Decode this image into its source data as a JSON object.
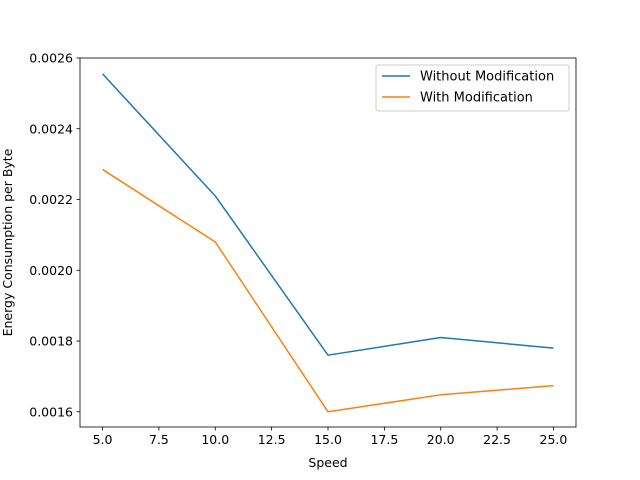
{
  "chart_data": {
    "type": "line",
    "title": "",
    "xlabel": "Speed",
    "ylabel": "Energy Consumption per Byte",
    "x": [
      5,
      10,
      15,
      20,
      25
    ],
    "xlim": [
      4.0,
      26.0
    ],
    "ylim": [
      0.001557,
      0.0026
    ],
    "x_ticks": [
      5.0,
      7.5,
      10.0,
      12.5,
      15.0,
      17.5,
      20.0,
      22.5,
      25.0
    ],
    "x_tick_labels": [
      "5.0",
      "7.5",
      "10.0",
      "12.5",
      "15.0",
      "17.5",
      "20.0",
      "22.5",
      "25.0"
    ],
    "y_ticks": [
      0.0016,
      0.0018,
      0.002,
      0.0022,
      0.0024,
      0.0026
    ],
    "y_tick_labels": [
      "0.0016",
      "0.0018",
      "0.0020",
      "0.0022",
      "0.0024",
      "0.0026"
    ],
    "grid": false,
    "legend_position": "top-right",
    "series": [
      {
        "name": "Without Modification",
        "color": "#1f77b4",
        "values": [
          0.002555,
          0.00221,
          0.00176,
          0.00181,
          0.00178
        ]
      },
      {
        "name": "With Modification",
        "color": "#ff7f0e",
        "values": [
          0.002285,
          0.00208,
          0.0016,
          0.001648,
          0.001674
        ]
      }
    ]
  }
}
